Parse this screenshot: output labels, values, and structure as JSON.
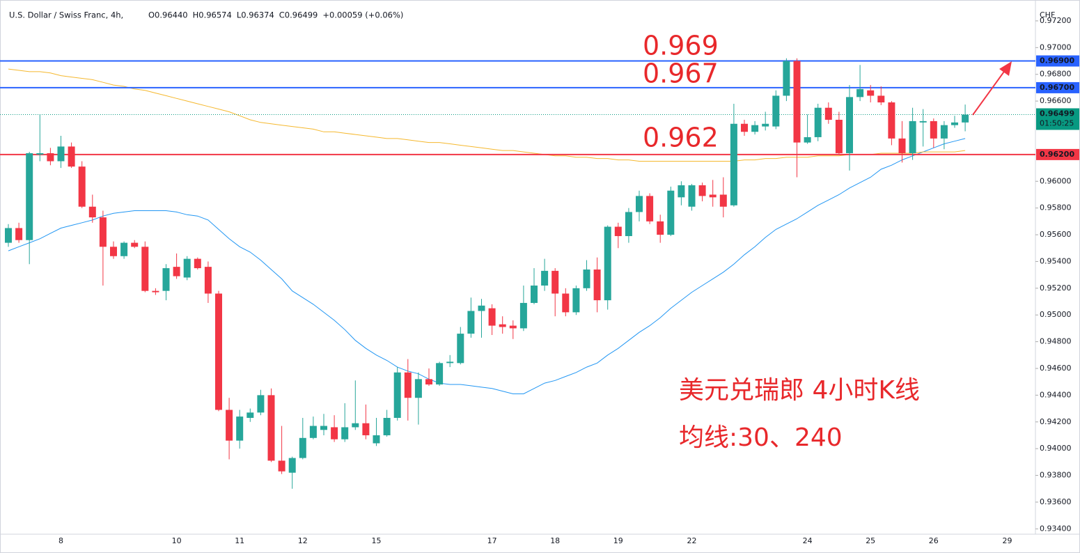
{
  "chart_data": {
    "type": "candlestick",
    "title": "U.S. Dollar / Swiss Franc, 4h,",
    "header_values": [
      "O0.96440",
      "H0.96574",
      "L0.96374",
      "C0.96499",
      "+0.00059 (+0.06%)"
    ],
    "currency": "CHF",
    "up_color": "#26a69a",
    "down_color": "#f23645",
    "categories": [
      null,
      null,
      null,
      null,
      null,
      "8",
      null,
      null,
      null,
      null,
      null,
      null,
      null,
      null,
      null,
      null,
      "10",
      null,
      null,
      null,
      null,
      null,
      "11",
      null,
      null,
      null,
      null,
      null,
      "12",
      null,
      null,
      null,
      null,
      null,
      null,
      "15",
      null,
      null,
      null,
      null,
      null,
      null,
      null,
      null,
      null,
      null,
      "17",
      null,
      null,
      null,
      null,
      null,
      "18",
      null,
      null,
      null,
      null,
      null,
      "19",
      null,
      null,
      null,
      null,
      null,
      null,
      "22",
      null,
      null,
      null,
      null,
      null,
      null,
      null,
      null,
      null,
      null,
      "24",
      null,
      null,
      null,
      null,
      null,
      "25",
      null,
      null,
      null,
      null,
      null,
      "26",
      null,
      null,
      null,
      null,
      null,
      null,
      "29"
    ],
    "open": [
      0.9554,
      0.9565,
      0.9556,
      0.962,
      0.9621,
      0.9615,
      0.9626,
      0.9611,
      0.9581,
      0.9573,
      0.9551,
      0.9544,
      0.9554,
      0.9551,
      0.9518,
      0.9518,
      0.9536,
      0.9528,
      0.9542,
      0.9536,
      0.9516,
      0.9429,
      0.9406,
      0.9423,
      0.9427,
      0.944,
      0.9391,
      0.9382,
      0.9393,
      0.9408,
      0.9414,
      0.9416,
      0.9407,
      0.9416,
      0.9419,
      0.9404,
      0.941,
      0.9423,
      0.9457,
      0.9438,
      0.9452,
      0.9448,
      0.9464,
      0.9464,
      0.9486,
      0.9503,
      0.9505,
      0.9493,
      0.9492,
      0.949,
      0.9509,
      0.9522,
      0.9533,
      0.9516,
      0.9502,
      0.952,
      0.9534,
      0.9511,
      0.9566,
      0.9559,
      0.9577,
      0.9589,
      0.957,
      0.956,
      0.9588,
      0.9581,
      0.9597,
      0.959,
      0.959,
      0.9582,
      0.9643,
      0.9637,
      0.9641,
      0.9641,
      0.9664,
      0.969,
      0.9629,
      0.9633,
      0.9655,
      0.9646,
      0.9621,
      0.9663,
      0.9668,
      0.9664,
      0.9659,
      0.9632,
      0.9621,
      0.9644,
      0.9645,
      0.9632,
      0.9642,
      0.9644,
      null,
      null,
      null,
      null
    ],
    "high": [
      0.9568,
      0.9569,
      0.9622,
      0.965,
      0.9625,
      0.9634,
      0.9629,
      0.9615,
      0.959,
      0.9578,
      0.9555,
      0.9555,
      0.9556,
      0.9555,
      0.952,
      0.9538,
      0.9546,
      0.9544,
      0.9543,
      0.954,
      0.9518,
      0.9438,
      0.9429,
      0.943,
      0.9444,
      0.9445,
      0.9417,
      0.9394,
      0.9423,
      0.9424,
      0.9426,
      0.9425,
      0.9434,
      0.9451,
      0.9433,
      0.9423,
      0.9429,
      0.9461,
      0.9467,
      0.9457,
      0.946,
      0.9465,
      0.947,
      0.9491,
      0.9513,
      0.9512,
      0.9508,
      0.9499,
      0.9496,
      0.9522,
      0.9535,
      0.9542,
      0.9535,
      0.952,
      0.9522,
      0.9541,
      0.9543,
      0.9567,
      0.9569,
      0.958,
      0.9593,
      0.9591,
      0.9575,
      0.9596,
      0.96,
      0.9598,
      0.9599,
      0.9601,
      0.9603,
      0.9658,
      0.9646,
      0.9645,
      0.9652,
      0.9668,
      0.9692,
      0.9692,
      0.965,
      0.9658,
      0.9659,
      0.9652,
      0.9672,
      0.9687,
      0.9672,
      0.9671,
      0.966,
      0.9645,
      0.9655,
      0.9654,
      0.9647,
      0.9645,
      0.9649,
      0.96574,
      null,
      null,
      null,
      null
    ],
    "low": [
      0.9551,
      0.9554,
      0.9538,
      0.9615,
      0.9612,
      0.961,
      0.961,
      0.958,
      0.9569,
      0.9522,
      0.9542,
      0.9542,
      0.955,
      0.9517,
      0.9515,
      0.9511,
      0.9527,
      0.9526,
      0.9534,
      0.9509,
      0.9428,
      0.9392,
      0.94,
      0.942,
      0.9425,
      0.939,
      0.9381,
      0.937,
      0.9392,
      0.9407,
      0.941,
      0.9405,
      0.9405,
      0.9414,
      0.9407,
      0.9402,
      0.9409,
      0.9421,
      0.9421,
      0.9418,
      0.9447,
      0.9447,
      0.9461,
      0.9463,
      0.9483,
      0.9483,
      0.9485,
      0.9486,
      0.9482,
      0.9488,
      0.9508,
      0.9518,
      0.9499,
      0.9499,
      0.95,
      0.9518,
      0.9502,
      0.9504,
      0.955,
      0.9554,
      0.957,
      0.9568,
      0.9554,
      0.9559,
      0.9582,
      0.9578,
      0.9585,
      0.9581,
      0.9573,
      0.9581,
      0.9634,
      0.9635,
      0.9638,
      0.9639,
      0.966,
      0.9603,
      0.9628,
      0.963,
      0.9643,
      0.962,
      0.9608,
      0.966,
      0.9659,
      0.9657,
      0.9627,
      0.9614,
      0.9616,
      0.9626,
      0.9625,
      0.9624,
      0.964,
      0.96374,
      null,
      null,
      null,
      null
    ],
    "close": [
      0.9565,
      0.9556,
      0.9621,
      0.9621,
      0.9615,
      0.9626,
      0.9611,
      0.9581,
      0.9573,
      0.9551,
      0.9544,
      0.9554,
      0.9551,
      0.9518,
      0.9517,
      0.9535,
      0.9529,
      0.9542,
      0.9535,
      0.9516,
      0.9429,
      0.9406,
      0.9424,
      0.9427,
      0.944,
      0.9391,
      0.9383,
      0.9393,
      0.9408,
      0.9417,
      0.9417,
      0.9407,
      0.9416,
      0.9419,
      0.941,
      0.941,
      0.9423,
      0.9457,
      0.9438,
      0.9452,
      0.9448,
      0.9464,
      0.9465,
      0.9486,
      0.9503,
      0.9507,
      0.9492,
      0.9491,
      0.949,
      0.9509,
      0.9522,
      0.9533,
      0.9516,
      0.9502,
      0.952,
      0.9534,
      0.9511,
      0.9566,
      0.9559,
      0.9577,
      0.9589,
      0.957,
      0.956,
      0.9593,
      0.9597,
      0.9597,
      0.9589,
      0.9588,
      0.9581,
      0.9643,
      0.9637,
      0.9642,
      0.9643,
      0.9664,
      0.969,
      0.9629,
      0.9633,
      0.9655,
      0.9646,
      0.9621,
      0.9663,
      0.9669,
      0.9664,
      0.9659,
      0.9632,
      0.9621,
      0.9645,
      0.9645,
      0.9632,
      0.9642,
      0.9644,
      0.96499,
      null,
      null,
      null,
      null
    ],
    "series": [
      {
        "color": "#2196f3",
        "values": [
          0.9548,
          0.9551,
          0.9554,
          0.9557,
          0.9561,
          0.9565,
          0.9567,
          0.9569,
          0.9571,
          0.9574,
          0.9576,
          0.9577,
          0.9578,
          0.9578,
          0.9578,
          0.9578,
          0.9577,
          0.9575,
          0.9574,
          0.9571,
          0.9564,
          0.9557,
          0.9551,
          0.9547,
          0.9541,
          0.9534,
          0.9527,
          0.9518,
          0.9513,
          0.9508,
          0.9502,
          0.9496,
          0.9489,
          0.9481,
          0.9475,
          0.947,
          0.9466,
          0.9461,
          0.9458,
          0.9456,
          0.9452,
          0.9449,
          0.9448,
          0.9448,
          0.9447,
          0.9446,
          0.9445,
          0.9443,
          0.9441,
          0.9441,
          0.9445,
          0.9449,
          0.9451,
          0.9454,
          0.9457,
          0.9461,
          0.9464,
          0.947,
          0.9475,
          0.9481,
          0.9487,
          0.9492,
          0.9498,
          0.9505,
          0.9511,
          0.9517,
          0.9522,
          0.9527,
          0.9532,
          0.9538,
          0.9545,
          0.9551,
          0.9558,
          0.9564,
          0.9568,
          0.9572,
          0.9577,
          0.9582,
          0.9586,
          0.959,
          0.9595,
          0.9599,
          0.9603,
          0.9609,
          0.9612,
          0.9616,
          0.9619,
          0.9622,
          0.9625,
          0.9628,
          0.963,
          0.9632,
          null,
          null,
          null,
          null
        ]
      },
      {
        "color": "#f5b82e",
        "values": [
          0.9684,
          0.9683,
          0.9682,
          0.9682,
          0.9681,
          0.9679,
          0.9678,
          0.9677,
          0.9676,
          0.9674,
          0.9672,
          0.9671,
          0.9669,
          0.9668,
          0.9666,
          0.9664,
          0.9662,
          0.966,
          0.9658,
          0.9656,
          0.9654,
          0.9652,
          0.9649,
          0.9646,
          0.9644,
          0.9643,
          0.9642,
          0.9641,
          0.964,
          0.9639,
          0.9637,
          0.9637,
          0.9636,
          0.9635,
          0.9634,
          0.9633,
          0.9632,
          0.9632,
          0.9631,
          0.963,
          0.9629,
          0.9629,
          0.9628,
          0.9627,
          0.9626,
          0.9625,
          0.9624,
          0.9623,
          0.9623,
          0.9622,
          0.9621,
          0.962,
          0.9619,
          0.9619,
          0.9618,
          0.9618,
          0.9617,
          0.9617,
          0.9616,
          0.9616,
          0.9615,
          0.9615,
          0.9615,
          0.9615,
          0.9615,
          0.9615,
          0.9615,
          0.9615,
          0.9615,
          0.9615,
          0.9616,
          0.9616,
          0.9617,
          0.9617,
          0.9618,
          0.9618,
          0.9618,
          0.9619,
          0.9619,
          0.9619,
          0.962,
          0.962,
          0.962,
          0.9621,
          0.9621,
          0.9621,
          0.9621,
          0.9622,
          0.9622,
          0.9622,
          0.9622,
          0.9623,
          null,
          null,
          null,
          null
        ]
      }
    ],
    "levels": [
      {
        "value": 0.969,
        "label": "0.96900",
        "color": "#2962ff"
      },
      {
        "value": 0.967,
        "label": "0.96700",
        "color": "#2962ff"
      },
      {
        "value": 0.962,
        "label": "0.96200",
        "color": "#f23645"
      }
    ],
    "current": {
      "value": 0.96499,
      "label": "0.96499",
      "countdown": "01:50:25"
    },
    "annotations": [
      "美元兑瑞郎 4小时K线",
      "均线:30、240"
    ],
    "ylim": [
      0.9336,
      0.9733
    ],
    "yticks": [
      {
        "value": 0.934,
        "label": "0.93400"
      },
      {
        "value": 0.936,
        "label": "0.93600"
      },
      {
        "value": 0.938,
        "label": "0.93800"
      },
      {
        "value": 0.94,
        "label": "0.94000"
      },
      {
        "value": 0.942,
        "label": "0.94200"
      },
      {
        "value": 0.944,
        "label": "0.94400"
      },
      {
        "value": 0.946,
        "label": "0.94600"
      },
      {
        "value": 0.948,
        "label": "0.94800"
      },
      {
        "value": 0.95,
        "label": "0.95000"
      },
      {
        "value": 0.952,
        "label": "0.95200"
      },
      {
        "value": 0.954,
        "label": "0.95400"
      },
      {
        "value": 0.956,
        "label": "0.95600"
      },
      {
        "value": 0.958,
        "label": "0.95800"
      },
      {
        "value": 0.96,
        "label": "0.96000"
      },
      {
        "value": 0.966,
        "label": "0.96600"
      },
      {
        "value": 0.968,
        "label": "0.96800"
      },
      {
        "value": 0.97,
        "label": "0.97000"
      },
      {
        "value": 0.972,
        "label": "0.97200"
      }
    ]
  }
}
